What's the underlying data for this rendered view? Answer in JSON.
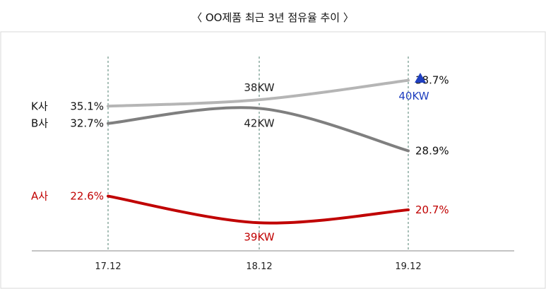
{
  "chart_data": {
    "type": "line",
    "title": "〈 OO제품 최근 3년 점유율 추이 〉",
    "categories": [
      "17.12",
      "18.12",
      "19.12"
    ],
    "series": [
      {
        "name": "K사",
        "values": [
          35.1,
          36.0,
          38.7
        ],
        "labels": [
          "35.1%",
          "",
          "38.7%"
        ],
        "color": "#b5b5b5",
        "annotation": "38KW",
        "annotation_color": "#222222"
      },
      {
        "name": "B사",
        "values": [
          32.7,
          34.8,
          28.9
        ],
        "labels": [
          "32.7%",
          "",
          "28.9%"
        ],
        "color": "#7f7f7f",
        "annotation": "42KW",
        "annotation_color": "#222222"
      },
      {
        "name": "A사",
        "values": [
          22.6,
          18.9,
          20.7
        ],
        "labels": [
          "22.6%",
          "",
          "20.7%"
        ],
        "color": "#c00000",
        "annotation": "39KW",
        "annotation_color": "#c00000"
      }
    ],
    "extra_annotation": {
      "text": "40KW",
      "color": "#1f3fbf",
      "marker": "triangle-up"
    },
    "xlabel": "",
    "ylabel": "",
    "ylim": [
      15,
      42
    ],
    "grid": false,
    "legend": "left-labels"
  }
}
